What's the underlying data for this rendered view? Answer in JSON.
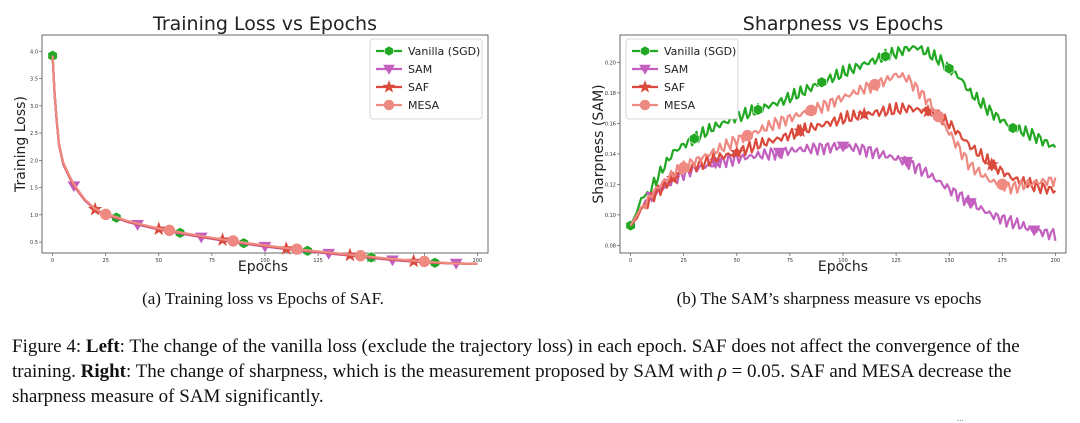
{
  "colors": {
    "vanilla": "#22a822",
    "sam": "#c25fbf",
    "saf": "#d94a3c",
    "mesa": "#ee8a82"
  },
  "subcaptions": {
    "left": "(a) Training loss vs Epochs of SAF.",
    "right": "(b) The SAM’s sharpness measure vs epochs"
  },
  "caption": {
    "figure_label": "Figure 4:",
    "left_label": "Left",
    "left_text": ": The change of the vanilla loss (exclude the trajectory loss) in each epoch. SAF does not affect the convergence of the training.",
    "right_label": "Right",
    "right_text_1": ": The change of sharpness, which is the measurement proposed by SAM with",
    "rho_symbol": "ρ",
    "rho_value": " = 0.05",
    "right_text_2": ". SAF and MESA decrease the sharpness measure of SAM significantly."
  },
  "page_mark": "...",
  "chart_data": [
    {
      "type": "line",
      "title": "Training Loss vs Epochs",
      "xlabel": "Epochs",
      "ylabel": "Training Loss)",
      "xlim": [
        -5,
        205
      ],
      "ylim": [
        0.3,
        4.3
      ],
      "xticks": [
        "0",
        "25",
        "50",
        "75",
        "100",
        "125",
        "150",
        "175",
        "200"
      ],
      "xtick_values": [
        0,
        25,
        50,
        75,
        100,
        125,
        150,
        175,
        200
      ],
      "yticks": [
        "0.5",
        "1.0",
        "1.5",
        "2.0",
        "2.5",
        "3.0",
        "3.5",
        "4.0"
      ],
      "ytick_values": [
        0.5,
        1.0,
        1.5,
        2.0,
        2.5,
        3.0,
        3.5,
        4.0
      ],
      "legend": "top-right",
      "legend_entries": [
        "Vanilla (SGD)",
        "SAM",
        "SAF",
        "MESA"
      ],
      "series": [
        {
          "name": "Vanilla (SGD)",
          "key": "vanilla",
          "marker": "hexagon",
          "x": [
            0,
            1,
            2,
            3,
            5,
            8,
            10,
            15,
            20,
            25,
            30,
            35,
            40,
            50,
            60,
            70,
            80,
            90,
            100,
            110,
            120,
            130,
            140,
            150,
            160,
            170,
            180,
            190,
            200
          ],
          "y": [
            3.92,
            3.2,
            2.7,
            2.3,
            1.95,
            1.7,
            1.55,
            1.28,
            1.1,
            1.0,
            0.95,
            0.88,
            0.83,
            0.74,
            0.67,
            0.6,
            0.54,
            0.48,
            0.43,
            0.38,
            0.34,
            0.3,
            0.26,
            0.22,
            0.18,
            0.15,
            0.12,
            0.11,
            0.1
          ],
          "markers_at": [
            0,
            30,
            60,
            90,
            120,
            150,
            180
          ]
        },
        {
          "name": "SAM",
          "key": "sam",
          "marker": "triangle-down",
          "x": [
            0,
            1,
            2,
            3,
            5,
            8,
            10,
            15,
            20,
            25,
            30,
            35,
            40,
            50,
            60,
            70,
            80,
            90,
            100,
            110,
            120,
            130,
            140,
            150,
            160,
            170,
            180,
            190,
            200
          ],
          "y": [
            3.92,
            3.18,
            2.68,
            2.28,
            1.93,
            1.68,
            1.53,
            1.27,
            1.09,
            0.99,
            0.94,
            0.87,
            0.82,
            0.73,
            0.66,
            0.59,
            0.53,
            0.47,
            0.42,
            0.37,
            0.33,
            0.29,
            0.25,
            0.21,
            0.17,
            0.14,
            0.12,
            0.11,
            0.1
          ],
          "markers_at": [
            10,
            40,
            70,
            100,
            130,
            160,
            190
          ]
        },
        {
          "name": "SAF",
          "key": "saf",
          "marker": "star",
          "x": [
            0,
            1,
            2,
            3,
            5,
            8,
            10,
            15,
            20,
            25,
            30,
            35,
            40,
            50,
            60,
            70,
            80,
            90,
            100,
            110,
            120,
            130,
            140,
            150,
            160,
            170,
            180,
            190,
            200
          ],
          "y": [
            3.92,
            3.19,
            2.69,
            2.29,
            1.94,
            1.69,
            1.54,
            1.28,
            1.1,
            1.0,
            0.95,
            0.88,
            0.83,
            0.74,
            0.67,
            0.6,
            0.54,
            0.48,
            0.43,
            0.38,
            0.34,
            0.3,
            0.26,
            0.22,
            0.18,
            0.15,
            0.12,
            0.11,
            0.1
          ],
          "markers_at": [
            20,
            50,
            80,
            110,
            140,
            170
          ]
        },
        {
          "name": "MESA",
          "key": "mesa",
          "marker": "circle",
          "x": [
            0,
            1,
            2,
            3,
            5,
            8,
            10,
            15,
            20,
            25,
            30,
            35,
            40,
            50,
            60,
            70,
            80,
            90,
            100,
            110,
            120,
            130,
            140,
            150,
            160,
            170,
            180,
            190,
            200
          ],
          "y": [
            3.92,
            3.21,
            2.71,
            2.31,
            1.96,
            1.71,
            1.56,
            1.29,
            1.11,
            1.01,
            0.96,
            0.89,
            0.84,
            0.75,
            0.68,
            0.61,
            0.55,
            0.49,
            0.44,
            0.39,
            0.35,
            0.31,
            0.27,
            0.23,
            0.19,
            0.16,
            0.13,
            0.11,
            0.1
          ],
          "markers_at": [
            25,
            55,
            85,
            115,
            145,
            175
          ]
        }
      ]
    },
    {
      "type": "line",
      "title": "Sharpness vs Epochs",
      "xlabel": "Epochs",
      "ylabel": "Sharpness (SAM)",
      "xlim": [
        -5,
        205
      ],
      "ylim": [
        0.075,
        0.218
      ],
      "xticks": [
        "0",
        "25",
        "50",
        "75",
        "100",
        "125",
        "150",
        "175",
        "200"
      ],
      "xtick_values": [
        0,
        25,
        50,
        75,
        100,
        125,
        150,
        175,
        200
      ],
      "yticks": [
        "0.08",
        "0.10",
        "0.12",
        "0.14",
        "0.16",
        "0.18",
        "0.20"
      ],
      "ytick_values": [
        0.08,
        0.1,
        0.12,
        0.14,
        0.16,
        0.18,
        0.2
      ],
      "legend": "top-left",
      "legend_entries": [
        "Vanilla (SGD)",
        "SAM",
        "SAF",
        "MESA"
      ],
      "series": [
        {
          "name": "Vanilla (SGD)",
          "key": "vanilla",
          "marker": "hexagon",
          "x": [
            0,
            3,
            5,
            8,
            10,
            15,
            20,
            25,
            30,
            40,
            50,
            60,
            70,
            80,
            90,
            100,
            110,
            120,
            125,
            130,
            135,
            140,
            145,
            150,
            155,
            160,
            170,
            180,
            190,
            200
          ],
          "y": [
            0.093,
            0.102,
            0.111,
            0.112,
            0.118,
            0.13,
            0.141,
            0.146,
            0.15,
            0.158,
            0.164,
            0.169,
            0.174,
            0.18,
            0.187,
            0.193,
            0.199,
            0.204,
            0.206,
            0.209,
            0.21,
            0.206,
            0.202,
            0.196,
            0.19,
            0.18,
            0.167,
            0.157,
            0.152,
            0.144
          ],
          "markers_at": [
            0,
            30,
            60,
            90,
            120,
            150,
            180
          ]
        },
        {
          "name": "SAM",
          "key": "sam",
          "marker": "triangle-down",
          "x": [
            0,
            3,
            5,
            8,
            10,
            15,
            20,
            25,
            30,
            40,
            50,
            60,
            70,
            80,
            90,
            100,
            110,
            120,
            130,
            140,
            150,
            160,
            170,
            180,
            190,
            200
          ],
          "y": [
            0.093,
            0.1,
            0.104,
            0.11,
            0.112,
            0.118,
            0.123,
            0.127,
            0.13,
            0.134,
            0.137,
            0.139,
            0.141,
            0.143,
            0.144,
            0.145,
            0.143,
            0.139,
            0.135,
            0.127,
            0.117,
            0.108,
            0.1,
            0.095,
            0.09,
            0.087
          ],
          "markers_at": [
            10,
            40,
            70,
            100,
            130,
            160,
            190
          ]
        },
        {
          "name": "SAF",
          "key": "saf",
          "marker": "star",
          "x": [
            0,
            3,
            5,
            8,
            10,
            15,
            20,
            25,
            30,
            40,
            50,
            60,
            70,
            80,
            90,
            100,
            110,
            120,
            130,
            140,
            150,
            160,
            170,
            180,
            190,
            200
          ],
          "y": [
            0.093,
            0.098,
            0.104,
            0.108,
            0.112,
            0.118,
            0.124,
            0.129,
            0.132,
            0.137,
            0.141,
            0.146,
            0.15,
            0.155,
            0.159,
            0.163,
            0.166,
            0.168,
            0.17,
            0.168,
            0.16,
            0.145,
            0.133,
            0.124,
            0.119,
            0.116
          ],
          "markers_at": [
            20,
            50,
            80,
            110,
            140,
            170
          ]
        },
        {
          "name": "MESA",
          "key": "mesa",
          "marker": "circle",
          "x": [
            0,
            3,
            5,
            8,
            10,
            15,
            20,
            25,
            30,
            40,
            50,
            60,
            70,
            80,
            90,
            100,
            110,
            120,
            125,
            130,
            140,
            150,
            160,
            170,
            180,
            190,
            200
          ],
          "y": [
            0.093,
            0.1,
            0.105,
            0.109,
            0.114,
            0.121,
            0.127,
            0.131,
            0.135,
            0.142,
            0.149,
            0.155,
            0.161,
            0.166,
            0.171,
            0.177,
            0.183,
            0.188,
            0.192,
            0.19,
            0.175,
            0.154,
            0.132,
            0.122,
            0.118,
            0.121,
            0.123
          ],
          "markers_at": [
            25,
            55,
            85,
            115,
            145,
            175
          ]
        }
      ]
    }
  ]
}
